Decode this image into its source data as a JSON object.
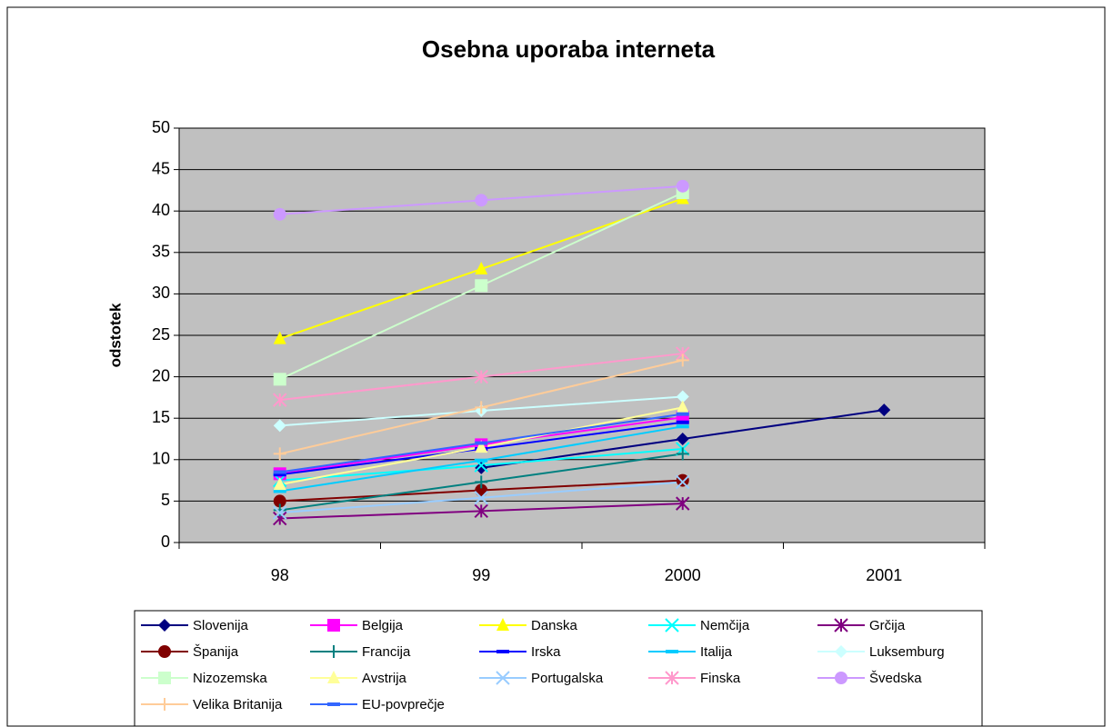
{
  "chart_data": {
    "type": "line",
    "title": "Osebna uporaba interneta",
    "y_label": "odstotek",
    "categories": [
      "98",
      "99",
      "2000",
      "2001"
    ],
    "ylim": [
      0,
      50
    ],
    "yticks": [
      0,
      5,
      10,
      15,
      20,
      25,
      30,
      35,
      40,
      45,
      50
    ],
    "grid": true,
    "series": [
      {
        "name": "Slovenija",
        "color": "#000080",
        "marker": "diamond",
        "values": [
          null,
          9,
          12.5,
          16
        ]
      },
      {
        "name": "Belgija",
        "color": "#ff00ff",
        "marker": "square",
        "values": [
          8.3,
          11.8,
          15.1,
          null
        ]
      },
      {
        "name": "Danska",
        "color": "#ffff00",
        "marker": "triangle",
        "values": [
          24.6,
          33,
          41.5,
          null
        ]
      },
      {
        "name": "Nemčija",
        "color": "#00ffff",
        "marker": "x",
        "values": [
          7.5,
          9.3,
          11.3,
          null
        ]
      },
      {
        "name": "Grčija",
        "color": "#800080",
        "marker": "star",
        "values": [
          2.9,
          3.8,
          4.7,
          null
        ]
      },
      {
        "name": "Španija",
        "color": "#800000",
        "marker": "circle",
        "values": [
          5,
          6.3,
          7.5,
          null
        ]
      },
      {
        "name": "Francija",
        "color": "#008080",
        "marker": "plus",
        "values": [
          3.9,
          7.3,
          10.7,
          null
        ]
      },
      {
        "name": "Irska",
        "color": "#0000ff",
        "marker": "dash",
        "values": [
          8.2,
          11.3,
          14.5,
          null
        ]
      },
      {
        "name": "Italija",
        "color": "#00ccff",
        "marker": "dash",
        "values": [
          6.2,
          9.9,
          14,
          null
        ]
      },
      {
        "name": "Luksemburg",
        "color": "#ccffff",
        "marker": "diamond",
        "values": [
          14.1,
          15.9,
          17.6,
          null
        ]
      },
      {
        "name": "Nizozemska",
        "color": "#ccffcc",
        "marker": "square",
        "values": [
          19.7,
          31,
          42.2,
          null
        ]
      },
      {
        "name": "Avstrija",
        "color": "#ffff99",
        "marker": "triangle",
        "values": [
          7,
          11.5,
          16.3,
          null
        ]
      },
      {
        "name": "Portugalska",
        "color": "#99ccff",
        "marker": "x",
        "values": [
          3.6,
          5.4,
          7.3,
          null
        ]
      },
      {
        "name": "Finska",
        "color": "#ff99cc",
        "marker": "star",
        "values": [
          17.2,
          20,
          22.8,
          null
        ]
      },
      {
        "name": "Švedska",
        "color": "#cc99ff",
        "marker": "circle",
        "values": [
          39.6,
          41.3,
          43,
          null
        ]
      },
      {
        "name": "Velika Britanija",
        "color": "#ffcc99",
        "marker": "plus",
        "values": [
          10.7,
          16.3,
          22,
          null
        ]
      },
      {
        "name": "EU-povprečje",
        "color": "#3366ff",
        "marker": "dash",
        "values": [
          8.5,
          12,
          15.5,
          null
        ]
      }
    ]
  }
}
